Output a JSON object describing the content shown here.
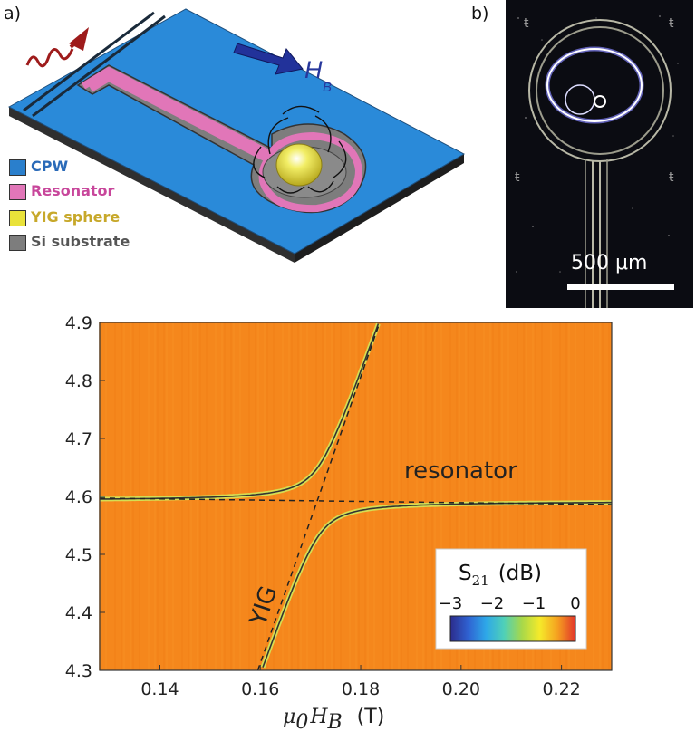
{
  "panels": {
    "a": {
      "label": "a)",
      "field_label": "H",
      "field_subscript": "B",
      "legend": [
        {
          "label": "CPW",
          "color": "#2a7fcc",
          "text_color": "#2a6ab8"
        },
        {
          "label": "Resonator",
          "color": "#e176b8",
          "text_color": "#c8469b"
        },
        {
          "label": "YIG sphere",
          "color": "#e9e23a",
          "text_color": "#c7a82a"
        },
        {
          "label": "Si substrate",
          "color": "#7d7d7d",
          "text_color": "#555555"
        }
      ]
    },
    "b": {
      "label": "b)",
      "scale_bar": "500 μm"
    }
  },
  "chart_data": {
    "type": "heatmap",
    "title": "",
    "xlabel": "μ0 HB (T)",
    "xlabel_parts": {
      "symbol": "μ",
      "sub": "0",
      "var": "H",
      "var_sub": "B",
      "unit": "(T)"
    },
    "ylabel": "",
    "xlim": [
      0.128,
      0.23
    ],
    "ylim": [
      4.3,
      4.9
    ],
    "x_ticks": [
      0.14,
      0.16,
      0.18,
      0.2,
      0.22
    ],
    "x_tick_labels": [
      "0.14",
      "0.16",
      "0.18",
      "0.20",
      "0.22"
    ],
    "y_ticks": [
      4.3,
      4.4,
      4.5,
      4.6,
      4.7,
      4.8,
      4.9
    ],
    "y_tick_labels": [
      "4.3",
      "4.4",
      "4.5",
      "4.6",
      "4.7",
      "4.8",
      "4.9"
    ],
    "background_color": "#f5871c",
    "uncoupled_modes": [
      {
        "name": "resonator",
        "x": [
          0.128,
          0.23
        ],
        "y": [
          4.597,
          4.586
        ]
      },
      {
        "name": "YIG",
        "x": [
          0.1595,
          0.1838
        ],
        "y": [
          4.3,
          4.9
        ]
      }
    ],
    "coupled_branches": {
      "coupling_g": 0.06,
      "resonator_freq": 4.592,
      "yig_slope": 24.7,
      "yig_crossing_x": 0.1716
    },
    "annotations": [
      "resonator",
      "YIG"
    ],
    "colorbar": {
      "title": "S21 (dB)",
      "title_parts": {
        "main": "S",
        "sub": "21",
        "unit": "(dB)"
      },
      "range": [
        -3,
        0
      ],
      "ticks": [
        -3,
        -2,
        -1,
        0
      ],
      "tick_labels": [
        "−3",
        "−2",
        "−1",
        "0"
      ],
      "colors": [
        "#2c2c8c",
        "#2f62d2",
        "#2ea8e8",
        "#4fd0b8",
        "#a7d84a",
        "#f5ea2a",
        "#f5a020",
        "#e2352a"
      ]
    }
  }
}
